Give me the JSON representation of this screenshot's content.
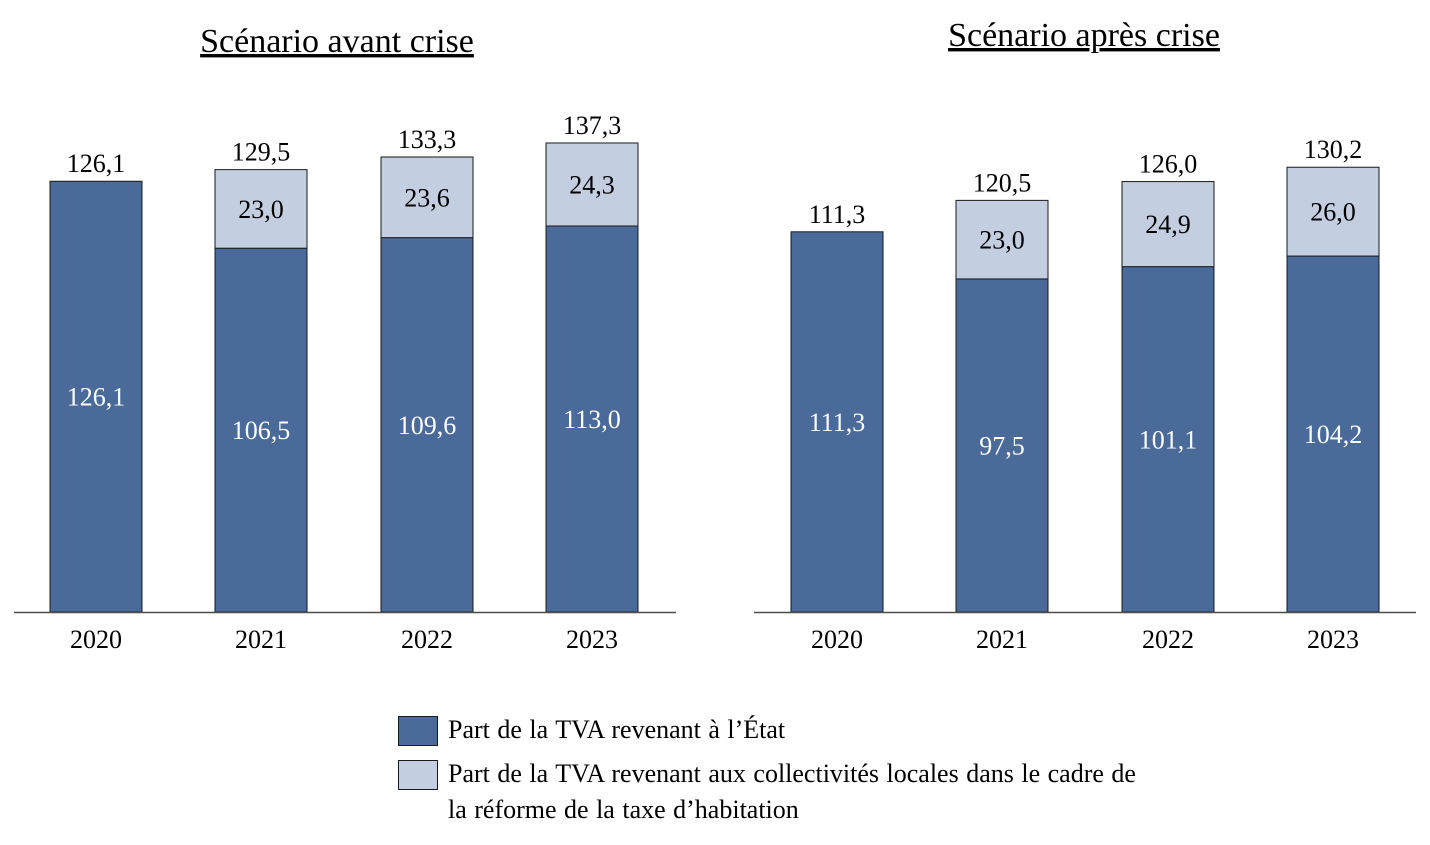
{
  "chart_data": [
    {
      "type": "bar",
      "stacked": true,
      "title": "Scénario avant crise",
      "categories": [
        "2020",
        "2021",
        "2022",
        "2023"
      ],
      "series": [
        {
          "name": "Part de la TVA revenant à l’État",
          "values": [
            126.1,
            106.5,
            109.6,
            113.0
          ],
          "labels": [
            "126,1",
            "106,5",
            "109,6",
            "113,0"
          ]
        },
        {
          "name": "Part de la TVA revenant aux collectivités locales dans le cadre de la réforme de la taxe d’habitation",
          "values": [
            0,
            23.0,
            23.6,
            24.3
          ],
          "labels": [
            "",
            "23,0",
            "23,6",
            "24,3"
          ]
        }
      ],
      "totals": [
        126.1,
        129.5,
        133.3,
        137.3
      ],
      "total_labels": [
        "126,1",
        "129,5",
        "133,3",
        "137,3"
      ],
      "ylim": [
        0,
        137.3
      ]
    },
    {
      "type": "bar",
      "stacked": true,
      "title": "Scénario après crise",
      "categories": [
        "2020",
        "2021",
        "2022",
        "2023"
      ],
      "series": [
        {
          "name": "Part de la TVA revenant à l’État",
          "values": [
            111.3,
            97.5,
            101.1,
            104.2
          ],
          "labels": [
            "111,3",
            "97,5",
            "101,1",
            "104,2"
          ]
        },
        {
          "name": "Part de la TVA revenant aux collectivités locales dans le cadre de la réforme de la taxe d’habitation",
          "values": [
            0,
            23.0,
            24.9,
            26.0
          ],
          "labels": [
            "",
            "23,0",
            "24,9",
            "26,0"
          ]
        }
      ],
      "totals": [
        111.3,
        120.5,
        126.0,
        130.2
      ],
      "total_labels": [
        "111,3",
        "120,5",
        "126,0",
        "130,2"
      ],
      "ylim": [
        0,
        130.2
      ]
    }
  ],
  "legend": {
    "items": [
      {
        "label": "Part de la TVA revenant à l’État",
        "color": "#4a6a9a"
      },
      {
        "label": "Part de la TVA revenant aux collectivités locales dans le cadre de la réforme de la taxe d’habitation",
        "color": "#c3cee0"
      }
    ]
  },
  "colors": {
    "state": "#4a6a9a",
    "local": "#c3cee0",
    "border": "#1a1a1a",
    "axis": "#4d4d4d"
  }
}
